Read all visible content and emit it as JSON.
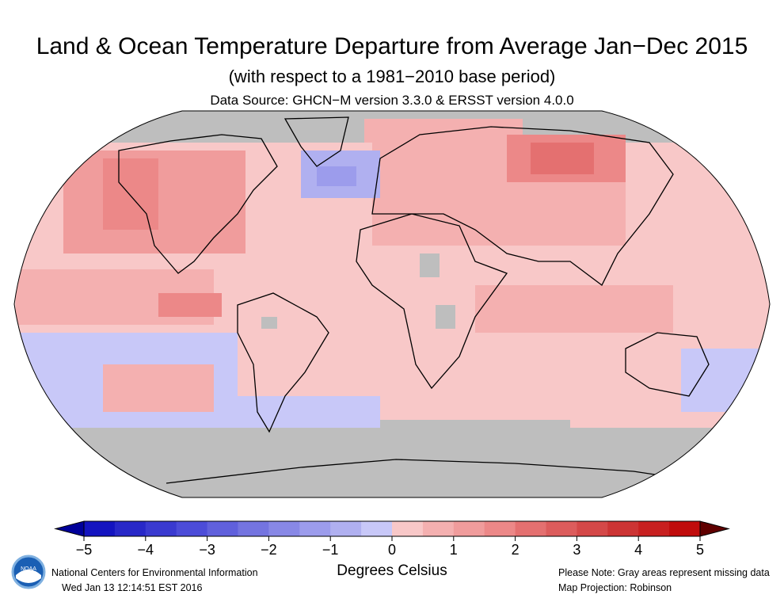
{
  "title": "Land & Ocean Temperature Departure from Average Jan−Dec 2015",
  "subtitle": "(with respect to a 1981−2010 base period)",
  "source": "Data Source: GHCN−M version 3.3.0 & ERSST version 4.0.0",
  "map_data": {
    "projection": "Robinson",
    "missing_color": "#bebebe",
    "colorbar": {
      "label": "Degrees Celsius",
      "range": [
        -5,
        5
      ],
      "step": 0.5,
      "ticks": [
        "−5",
        "−4",
        "−3",
        "−2",
        "−1",
        "0",
        "1",
        "2",
        "3",
        "4",
        "5"
      ],
      "tick_values": [
        -5,
        -4,
        -3,
        -2,
        -1,
        0,
        1,
        2,
        3,
        4,
        5
      ],
      "colors": [
        "#1414c0",
        "#2828c8",
        "#3a3ad0",
        "#4c4cd8",
        "#6060dc",
        "#7474e0",
        "#8888e6",
        "#9c9cec",
        "#b0b0f0",
        "#c8c8f8",
        "#f8c8c8",
        "#f4b0b0",
        "#f09c9c",
        "#ec8888",
        "#e47070",
        "#dc5c5c",
        "#d44848",
        "#cc3434",
        "#c82020",
        "#c00c0c"
      ],
      "under_color": "#00009a",
      "over_color": "#600000"
    }
  },
  "footer": {
    "org": "National Centers for Environmental Information",
    "timestamp": "Wed Jan 13 12:14:51 EST 2016",
    "note": "Please Note: Gray areas represent missing data",
    "projection": "Map Projection: Robinson",
    "logo_text": "NOAA"
  }
}
